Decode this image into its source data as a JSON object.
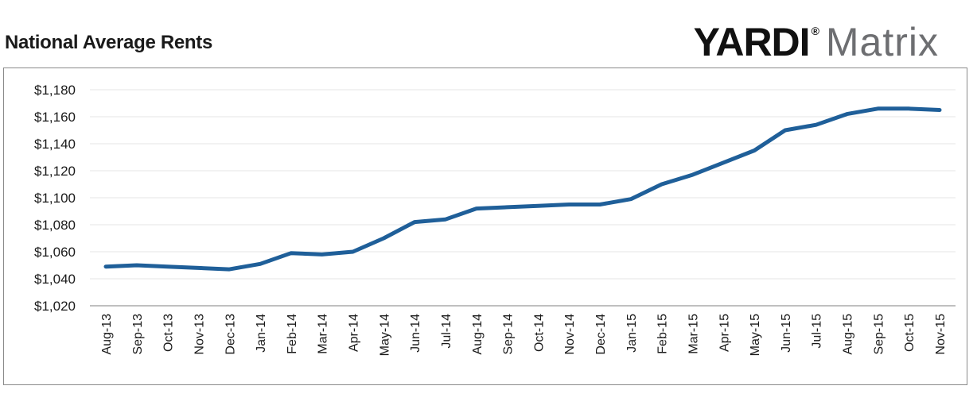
{
  "header": {
    "title": "National Average Rents",
    "logo_yardi": "YARDI",
    "logo_reg": "®",
    "logo_matrix": "Matrix"
  },
  "chart_data": {
    "type": "line",
    "title": "National Average Rents",
    "xlabel": "",
    "ylabel": "",
    "categories": [
      "Aug-13",
      "Sep-13",
      "Oct-13",
      "Nov-13",
      "Dec-13",
      "Jan-14",
      "Feb-14",
      "Mar-14",
      "Apr-14",
      "May-14",
      "Jun-14",
      "Jul-14",
      "Aug-14",
      "Sep-14",
      "Oct-14",
      "Nov-14",
      "Dec-14",
      "Jan-15",
      "Feb-15",
      "Mar-15",
      "Apr-15",
      "May-15",
      "Jun-15",
      "Jul-15",
      "Aug-15",
      "Sep-15",
      "Oct-15",
      "Nov-15"
    ],
    "series": [
      {
        "values": [
          1049,
          1050,
          1049,
          1048,
          1047,
          1051,
          1059,
          1058,
          1060,
          1070,
          1082,
          1084,
          1092,
          1093,
          1094,
          1095,
          1095,
          1099,
          1110,
          1117,
          1126,
          1135,
          1150,
          1154,
          1162,
          1166,
          1166,
          1165
        ],
        "color": "#1f5f99"
      }
    ],
    "ylim": [
      1020,
      1180
    ],
    "yticks": [
      1020,
      1040,
      1060,
      1080,
      1100,
      1120,
      1140,
      1160,
      1180
    ],
    "ytick_labels": [
      "$1,020",
      "$1,040",
      "$1,060",
      "$1,080",
      "$1,100",
      "$1,120",
      "$1,140",
      "$1,160",
      "$1,180"
    ],
    "grid": true,
    "gridline_color": "#e6e6e6",
    "legend": "none"
  }
}
